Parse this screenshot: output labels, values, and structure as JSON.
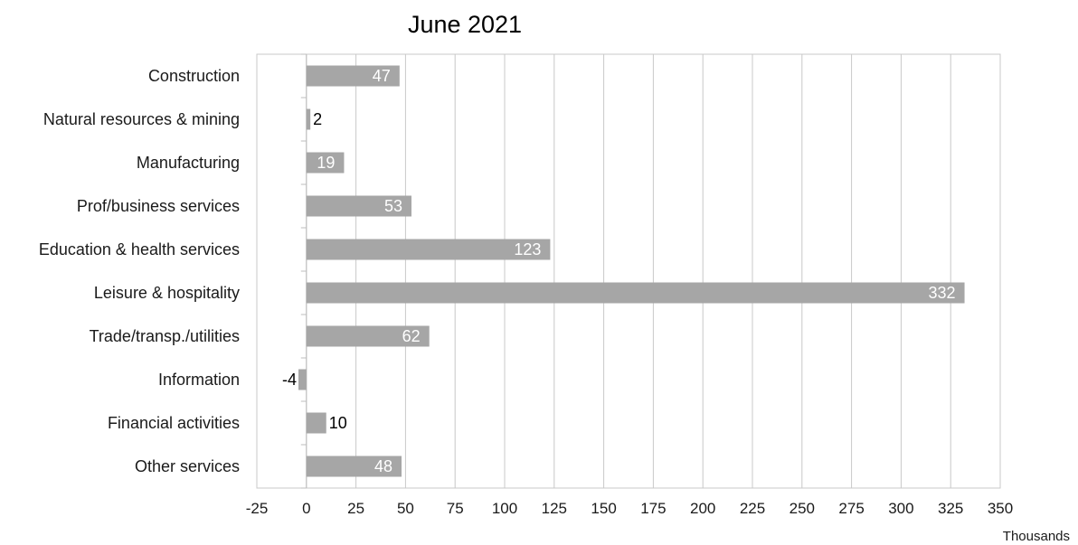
{
  "chart_data": {
    "type": "bar",
    "orientation": "horizontal",
    "title": "June 2021",
    "unit_label": "Thousands",
    "categories": [
      "Construction",
      "Natural resources & mining",
      "Manufacturing",
      "Prof/business services",
      "Education & health services",
      "Leisure & hospitality",
      "Trade/transp./utilities",
      "Information",
      "Financial activities",
      "Other services"
    ],
    "values": [
      47,
      2,
      19,
      53,
      123,
      332,
      62,
      -4,
      10,
      48
    ],
    "xlim": [
      -25,
      350
    ],
    "x_ticks": [
      -25,
      0,
      25,
      50,
      75,
      100,
      125,
      150,
      175,
      200,
      225,
      250,
      275,
      300,
      325,
      350
    ],
    "grid": "vertical",
    "legend": "none",
    "bar_color": "#a6a6a6",
    "grid_color": "#c8c8c8",
    "label_inside_color": "#ffffff",
    "label_outside_color": "#000000"
  }
}
